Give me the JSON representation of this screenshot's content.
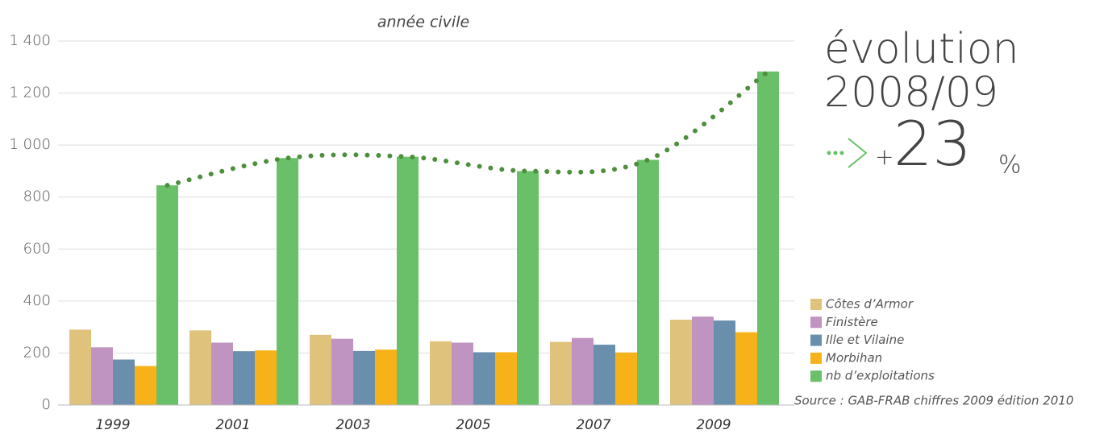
{
  "chart_data": {
    "type": "bar",
    "title": "année civile",
    "categories": [
      "1999",
      "2001",
      "2003",
      "2005",
      "2007",
      "2009"
    ],
    "series": [
      {
        "name": "Côtes d’Armor",
        "color": "#dfc27b",
        "values": [
          290,
          287,
          270,
          245,
          243,
          328
        ]
      },
      {
        "name": "Finistère",
        "color": "#c094c0",
        "values": [
          222,
          240,
          255,
          240,
          258,
          340
        ]
      },
      {
        "name": "Ille et Vilaine",
        "color": "#6a8fad",
        "values": [
          175,
          207,
          208,
          203,
          232,
          325
        ]
      },
      {
        "name": "Morbihan",
        "color": "#f7b21a",
        "values": [
          150,
          210,
          213,
          203,
          202,
          280
        ]
      },
      {
        "name": "nb d’exploitations",
        "color": "#6abf69",
        "values": [
          845,
          950,
          955,
          900,
          943,
          1283
        ]
      }
    ],
    "trend_color": "#4e8f3d",
    "ylim": [
      0,
      1400
    ],
    "yticks": [
      0,
      200,
      400,
      600,
      800,
      {
        "value": 1000,
        "label": "1 000"
      },
      {
        "value": 1200,
        "label": "1 200"
      },
      {
        "value": 1400,
        "label": "1 400"
      }
    ],
    "grid": true,
    "annotation": {
      "line1": "évolution",
      "line2": "2008/09",
      "sign": "+",
      "number": "23",
      "unit": "%"
    },
    "source": "Source : GAB-FRAB chiffres 2009 édition 2010"
  }
}
